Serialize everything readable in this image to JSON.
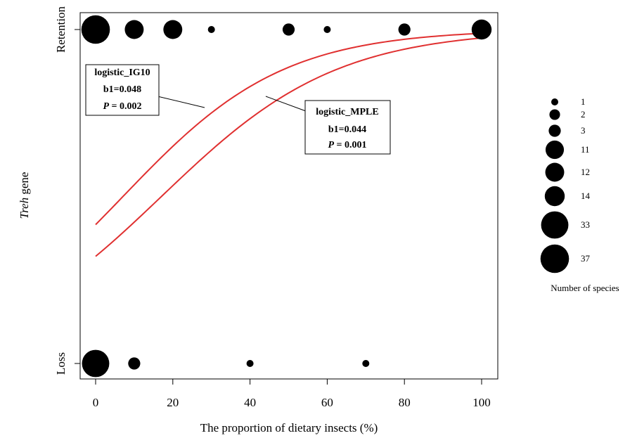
{
  "chart_data": {
    "type": "scatter",
    "xlabel": "The proportion of dietary insects (%)",
    "ylabel_italic": "Treh",
    "ylabel_rest": " gene",
    "x_ticks": [
      0,
      20,
      40,
      60,
      80,
      100
    ],
    "y_categories": [
      "Loss",
      "Retention"
    ],
    "xlim": [
      -5,
      104
    ],
    "points": [
      {
        "x": 0,
        "y": "Retention",
        "count": 37
      },
      {
        "x": 10,
        "y": "Retention",
        "count": 12
      },
      {
        "x": 20,
        "y": "Retention",
        "count": 12
      },
      {
        "x": 30,
        "y": "Retention",
        "count": 1
      },
      {
        "x": 50,
        "y": "Retention",
        "count": 3
      },
      {
        "x": 60,
        "y": "Retention",
        "count": 1
      },
      {
        "x": 80,
        "y": "Retention",
        "count": 3
      },
      {
        "x": 100,
        "y": "Retention",
        "count": 14
      },
      {
        "x": 0,
        "y": "Loss",
        "count": 33
      },
      {
        "x": 10,
        "y": "Loss",
        "count": 3
      },
      {
        "x": 40,
        "y": "Loss",
        "count": 1
      },
      {
        "x": 70,
        "y": "Loss",
        "count": 1
      }
    ],
    "curves": [
      {
        "name": "logistic_IG10",
        "b1_label": "b1=0.048",
        "p_value": "0.002",
        "b0": -0.34,
        "b1": 0.048,
        "color": "#e03030"
      },
      {
        "name": "logistic_MPLE",
        "b1_label": "b1=0.044",
        "p_value": "0.001",
        "b0": -0.75,
        "b1": 0.044,
        "color": "#e03030"
      }
    ],
    "annotation_p_symbol": "P",
    "annotation_p_eq": " = ",
    "legend": {
      "title": "Number of species",
      "counts": [
        1,
        2,
        3,
        11,
        12,
        14,
        33,
        37
      ],
      "labels": [
        "1",
        "2",
        "3",
        "11",
        "12",
        "14",
        "33",
        "37"
      ]
    },
    "colors": {
      "points": "#000000",
      "curves": "#e03030"
    }
  }
}
